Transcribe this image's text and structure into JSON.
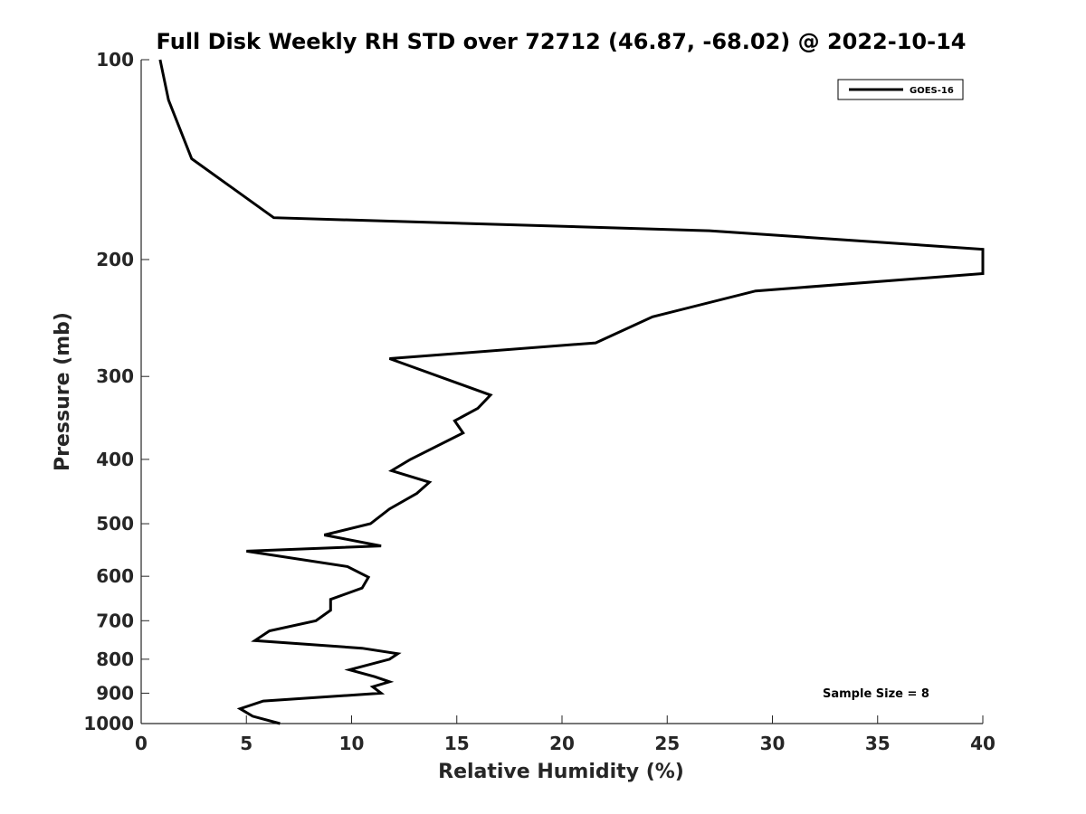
{
  "chart_data": {
    "type": "line",
    "title": "Full Disk Weekly RH STD over 72712 (46.87, -68.02) @ 2022-10-14",
    "xlabel": "Relative Humidity (%)",
    "ylabel": "Pressure (mb)",
    "xlim": [
      0,
      40
    ],
    "ylim": [
      100,
      1000
    ],
    "y_scale": "log",
    "y_reversed": true,
    "x_ticks": [
      0,
      5,
      10,
      15,
      20,
      25,
      30,
      35,
      40
    ],
    "y_ticks": [
      100,
      200,
      300,
      400,
      500,
      600,
      700,
      800,
      900,
      1000
    ],
    "grid": false,
    "legend_position": "top-right",
    "annotation": "Sample Size = 8",
    "series": [
      {
        "name": "GOES-16",
        "color": "#000000",
        "x": [
          0.9,
          1.3,
          2.4,
          6.3,
          27,
          40,
          40,
          29.2,
          24.3,
          21.6,
          11.8,
          16.6,
          16.0,
          14.9,
          15.3,
          12.8,
          11.9,
          13.7,
          13.1,
          11.8,
          10.9,
          8.7,
          11.4,
          5.0,
          9.8,
          10.8,
          10.5,
          9.0,
          9.0,
          8.3,
          6.1,
          5.4,
          10.5,
          12.2,
          11.8,
          9.9,
          11.1,
          11.8,
          11.0,
          11.4,
          5.8,
          4.7,
          5.3,
          6.6
        ],
        "y": [
          100,
          115,
          141,
          173,
          181,
          193,
          210,
          223,
          244,
          267,
          282,
          320,
          335,
          350,
          365,
          400,
          416,
          433,
          450,
          475,
          500,
          520,
          540,
          550,
          580,
          602,
          625,
          650,
          675,
          700,
          725,
          750,
          770,
          785,
          800,
          830,
          850,
          865,
          880,
          900,
          925,
          950,
          975,
          1000
        ]
      }
    ]
  }
}
